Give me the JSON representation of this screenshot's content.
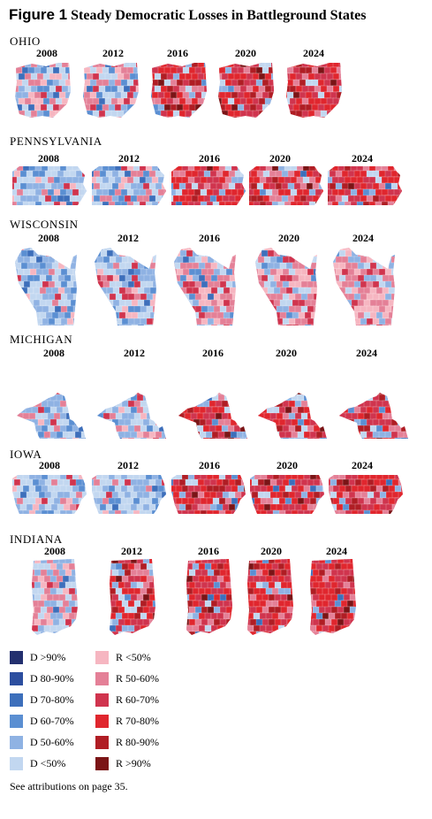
{
  "figure": {
    "number": "Figure 1",
    "title": "Steady Democratic Losses in Battleground States"
  },
  "years": [
    "2008",
    "2012",
    "2016",
    "2020",
    "2024"
  ],
  "states": [
    {
      "name": "OHIO",
      "shape": "ohio",
      "margin_shift": [
        0.45,
        0.5,
        0.78,
        0.84,
        0.88
      ]
    },
    {
      "name": "PENNSYLVANIA",
      "shape": "pennsylvania",
      "margin_shift": [
        0.3,
        0.38,
        0.75,
        0.78,
        0.82
      ]
    },
    {
      "name": "WISCONSIN",
      "shape": "wisconsin",
      "margin_shift": [
        0.12,
        0.2,
        0.62,
        0.66,
        0.68
      ]
    },
    {
      "name": "MICHIGAN",
      "shape": "michigan",
      "margin_shift": [
        0.22,
        0.3,
        0.72,
        0.76,
        0.78
      ]
    },
    {
      "name": "IOWA",
      "shape": "iowa",
      "margin_shift": [
        0.22,
        0.18,
        0.82,
        0.86,
        0.9
      ]
    },
    {
      "name": "INDIANA",
      "shape": "indiana",
      "margin_shift": [
        0.5,
        0.72,
        0.82,
        0.86,
        0.9
      ]
    }
  ],
  "legend": {
    "democratic": [
      {
        "label": "D >90%",
        "color": "#23306f"
      },
      {
        "label": "D 80-90%",
        "color": "#2c4e9f"
      },
      {
        "label": "D 70-80%",
        "color": "#3d6fbb"
      },
      {
        "label": "D 60-70%",
        "color": "#5b8fd2"
      },
      {
        "label": "D 50-60%",
        "color": "#8fb2e3"
      },
      {
        "label": "D <50%",
        "color": "#c2d7f0"
      }
    ],
    "republican": [
      {
        "label": "R <50%",
        "color": "#f6b6c1"
      },
      {
        "label": "R 50-60%",
        "color": "#e48097"
      },
      {
        "label": "R 60-70%",
        "color": "#d0344e"
      },
      {
        "label": "R 70-80%",
        "color": "#e0262e"
      },
      {
        "label": "R 80-90%",
        "color": "#b01d24"
      },
      {
        "label": "R >90%",
        "color": "#7b1416"
      }
    ]
  },
  "footnote": "See attributions on page 35."
}
